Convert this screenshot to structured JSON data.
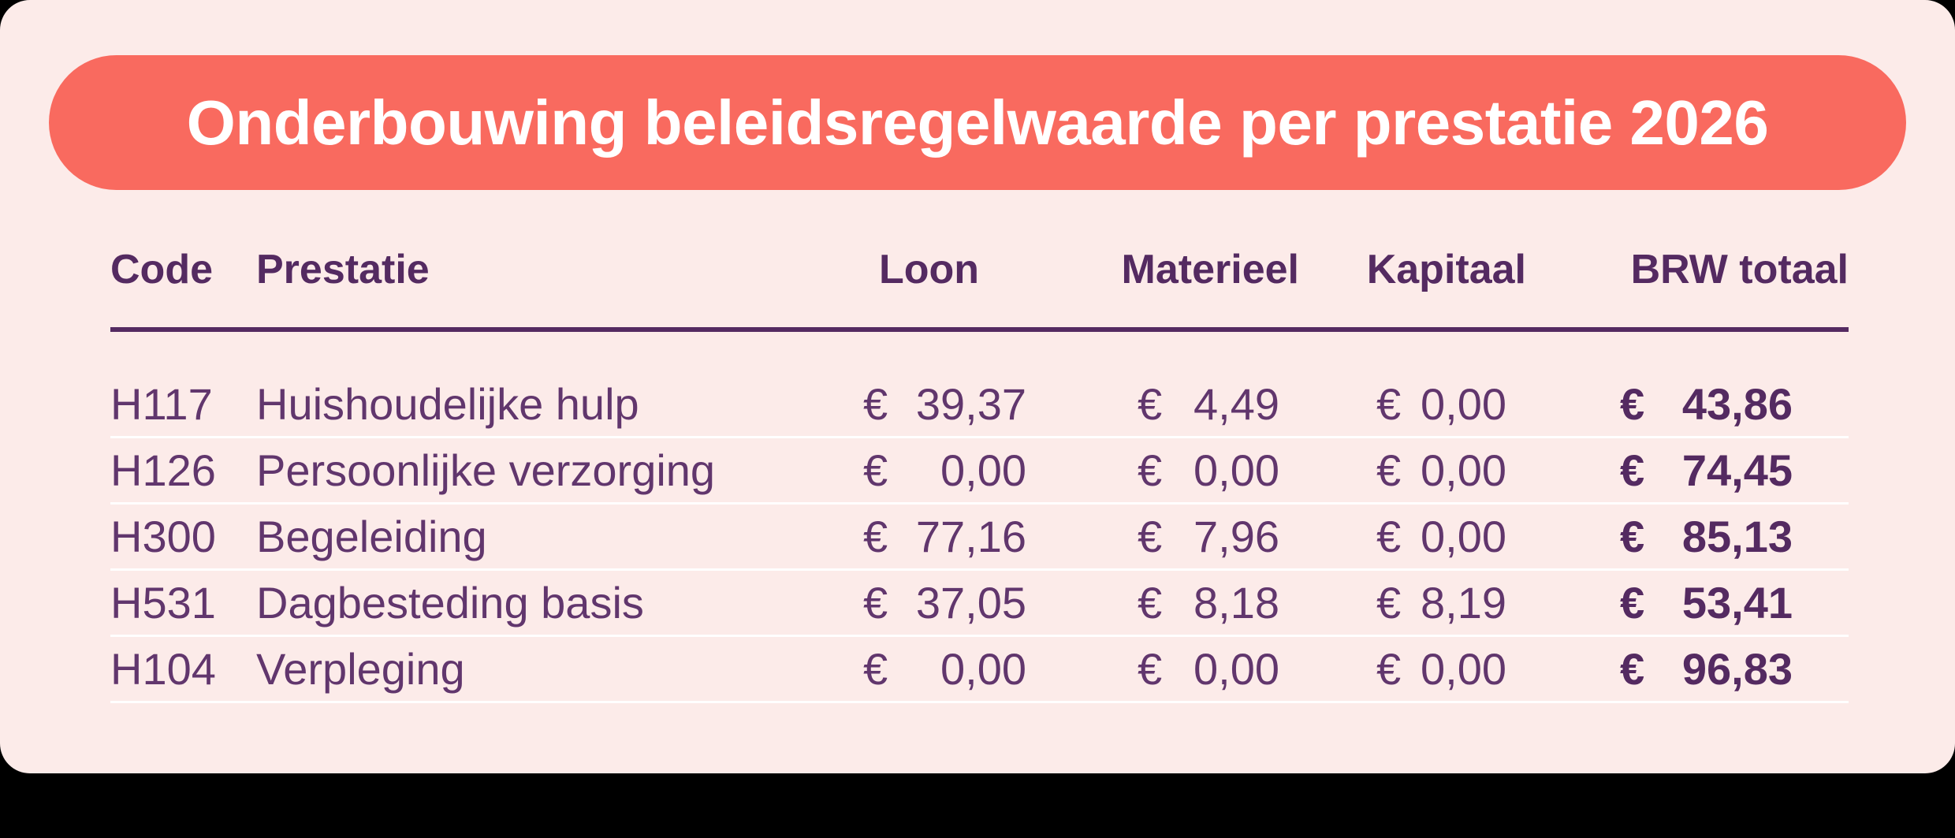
{
  "banner": {
    "title": "Onderbouwing beleidsregelwaarde per prestatie 2026"
  },
  "table": {
    "currency_symbol": "€",
    "headers": [
      "Code",
      "Prestatie",
      "Loon",
      "Materieel",
      "Kapitaal",
      "BRW totaal"
    ],
    "rows": [
      {
        "code": "H117",
        "prestatie": "Huishoudelijke hulp",
        "loon": "39,37",
        "materieel": "4,49",
        "kapitaal": "0,00",
        "brw_totaal": "43,86"
      },
      {
        "code": "H126",
        "prestatie": "Persoonlijke verzorging",
        "loon": "0,00",
        "materieel": "0,00",
        "kapitaal": "0,00",
        "brw_totaal": "74,45"
      },
      {
        "code": "H300",
        "prestatie": "Begeleiding",
        "loon": "77,16",
        "materieel": "7,96",
        "kapitaal": "0,00",
        "brw_totaal": "85,13"
      },
      {
        "code": "H531",
        "prestatie": "Dagbesteding basis",
        "loon": "37,05",
        "materieel": "8,18",
        "kapitaal": "8,19",
        "brw_totaal": "53,41"
      },
      {
        "code": "H104",
        "prestatie": "Verpleging",
        "loon": "0,00",
        "materieel": "0,00",
        "kapitaal": "0,00",
        "brw_totaal": "96,83"
      }
    ]
  },
  "colors": {
    "page_background": "#000000",
    "card_background": "#fcebe9",
    "banner_background": "#f96a5f",
    "banner_text": "#ffffff",
    "header_text": "#542a61",
    "body_text": "#61366d",
    "header_rule": "#542a61",
    "row_separator": "#ffffff"
  },
  "chart_data": {
    "type": "table",
    "title": "Onderbouwing beleidsregelwaarde per prestatie 2026",
    "columns": [
      "Code",
      "Prestatie",
      "Loon",
      "Materieel",
      "Kapitaal",
      "BRW totaal"
    ],
    "rows": [
      [
        "H117",
        "Huishoudelijke hulp",
        "€ 39,37",
        "€ 4,49",
        "€ 0,00",
        "€ 43,86"
      ],
      [
        "H126",
        "Persoonlijke verzorging",
        "€ 0,00",
        "€ 0,00",
        "€ 0,00",
        "€ 74,45"
      ],
      [
        "H300",
        "Begeleiding",
        "€ 77,16",
        "€ 7,96",
        "€ 0,00",
        "€ 85,13"
      ],
      [
        "H531",
        "Dagbesteding basis",
        "€ 37,05",
        "€ 8,18",
        "€ 8,19",
        "€ 53,41"
      ],
      [
        "H104",
        "Verpleging",
        "€ 0,00",
        "€ 0,00",
        "€ 0,00",
        "€ 96,83"
      ]
    ],
    "layout_hints": {
      "currency": "EUR, Dutch decimal comma",
      "bold_column": "BRW totaal",
      "amount_alignment": "euro sign left of cell, amount right-aligned"
    }
  }
}
